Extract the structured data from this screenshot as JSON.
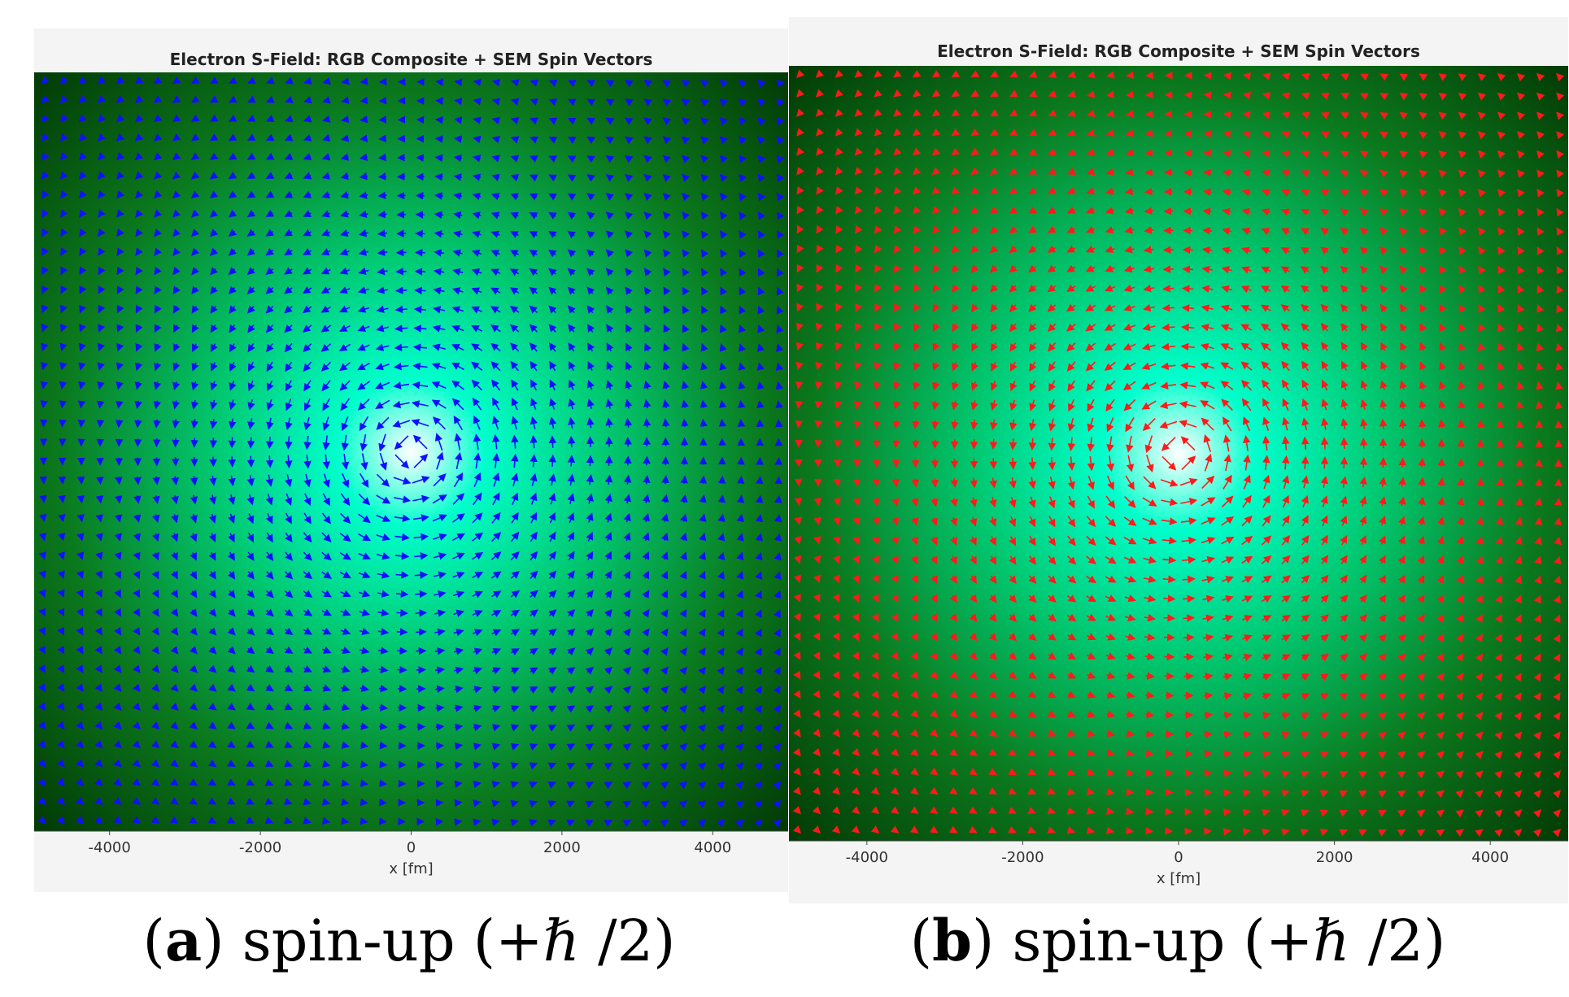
{
  "panels": [
    {
      "label": "a",
      "title": "Electron S-Field: RGB Composite + SEM Spin Vectors",
      "caption_text": "spin-up (+ℏ /2)",
      "arrow_color": "#1010ff"
    },
    {
      "label": "b",
      "title": "Electron S-Field: RGB Composite + SEM Spin Vectors",
      "caption_text": "spin-up (+ℏ /2)",
      "arrow_color": "#ff1a1a"
    }
  ],
  "chart_data": [
    {
      "type": "heatmap",
      "title": "Electron S-Field: RGB Composite + SEM Spin Vectors",
      "xlabel": "x [fm]",
      "ylabel": "",
      "xlim": [
        -5000,
        5000
      ],
      "ylim": [
        -5000,
        5000
      ],
      "x_ticks": [
        "-4000",
        "-2000",
        "0",
        "2000",
        "4000"
      ],
      "x_tick_values": [
        -4000,
        -2000,
        0,
        2000,
        4000
      ],
      "colormap": [
        "#ffffff",
        "#00ffcc",
        "#00c870",
        "#0b7a1e",
        "#012f00"
      ],
      "overlay": {
        "type": "quiver",
        "color": "#1010ff",
        "pattern": "circulation around origin",
        "spacing": 250
      },
      "grid": false
    },
    {
      "type": "heatmap",
      "title": "Electron S-Field: RGB Composite + SEM Spin Vectors",
      "xlabel": "x [fm]",
      "ylabel": "",
      "xlim": [
        -5000,
        5000
      ],
      "ylim": [
        -5000,
        5000
      ],
      "x_ticks": [
        "-4000",
        "-2000",
        "0",
        "2000",
        "4000"
      ],
      "x_tick_values": [
        -4000,
        -2000,
        0,
        2000,
        4000
      ],
      "colormap": [
        "#ffffff",
        "#00ffcc",
        "#00c870",
        "#0b7a1e",
        "#012f00"
      ],
      "overlay": {
        "type": "quiver",
        "color": "#ff1a1a",
        "pattern": "circulation around origin",
        "spacing": 250
      },
      "grid": false
    }
  ]
}
